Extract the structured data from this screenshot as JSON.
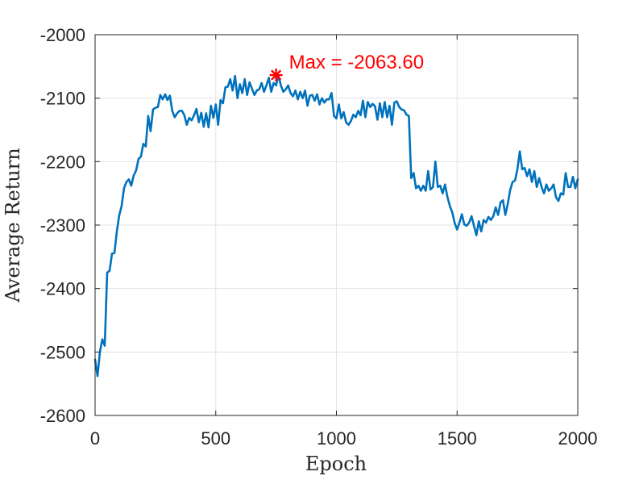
{
  "chart_data": {
    "type": "line",
    "title": "",
    "xlabel": "Epoch",
    "ylabel": "Average Return",
    "xlim": [
      0,
      2000
    ],
    "ylim": [
      -2600,
      -2000
    ],
    "xticks": [
      0,
      500,
      1000,
      1500,
      2000
    ],
    "yticks": [
      -2600,
      -2500,
      -2400,
      -2300,
      -2200,
      -2100,
      -2000
    ],
    "xtick_labels": [
      "0",
      "500",
      "1000",
      "1500",
      "2000"
    ],
    "ytick_labels": [
      "-2600",
      "-2500",
      "-2400",
      "-2300",
      "-2200",
      "-2100",
      "-2000"
    ],
    "grid": true,
    "line_color": "#0072BD",
    "series": [
      {
        "x": [
          0,
          10,
          20,
          30,
          40,
          50,
          60,
          70,
          80,
          90,
          100,
          110,
          120,
          130,
          140,
          150,
          160,
          170,
          180,
          190,
          200,
          210,
          220,
          230,
          240,
          250,
          260,
          270,
          280,
          290,
          300,
          310,
          320,
          330,
          340,
          350,
          360,
          370,
          380,
          390,
          400,
          410,
          420,
          430,
          440,
          450,
          460,
          470,
          480,
          490,
          500,
          510,
          520,
          530,
          540,
          550,
          560,
          570,
          580,
          590,
          600,
          610,
          620,
          630,
          640,
          650,
          660,
          670,
          680,
          690,
          700,
          710,
          720,
          730,
          740,
          750,
          760,
          770,
          780,
          790,
          800,
          810,
          820,
          830,
          840,
          850,
          860,
          870,
          880,
          890,
          900,
          910,
          920,
          930,
          940,
          950,
          960,
          970,
          980,
          990,
          1000,
          1010,
          1020,
          1030,
          1040,
          1050,
          1060,
          1070,
          1080,
          1090,
          1100,
          1110,
          1120,
          1130,
          1140,
          1150,
          1160,
          1170,
          1180,
          1190,
          1200,
          1210,
          1220,
          1230,
          1240,
          1250,
          1260,
          1270,
          1280,
          1290,
          1300,
          1310,
          1320,
          1330,
          1340,
          1350,
          1360,
          1370,
          1380,
          1390,
          1400,
          1410,
          1420,
          1430,
          1440,
          1450,
          1460,
          1470,
          1480,
          1490,
          1500,
          1510,
          1520,
          1530,
          1540,
          1550,
          1560,
          1570,
          1580,
          1590,
          1600,
          1610,
          1620,
          1630,
          1640,
          1650,
          1660,
          1670,
          1680,
          1690,
          1700,
          1710,
          1720,
          1730,
          1740,
          1750,
          1760,
          1770,
          1780,
          1790,
          1800,
          1810,
          1820,
          1830,
          1840,
          1850,
          1860,
          1870,
          1880,
          1890,
          1900,
          1910,
          1920,
          1930,
          1940,
          1950,
          1960,
          1970,
          1980,
          1990,
          2000
        ],
        "y": [
          -2512,
          -2538,
          -2500,
          -2480,
          -2490,
          -2375,
          -2372,
          -2345,
          -2344,
          -2310,
          -2285,
          -2270,
          -2242,
          -2232,
          -2228,
          -2238,
          -2222,
          -2214,
          -2196,
          -2192,
          -2172,
          -2176,
          -2128,
          -2152,
          -2118,
          -2115,
          -2114,
          -2095,
          -2102,
          -2094,
          -2103,
          -2096,
          -2120,
          -2130,
          -2124,
          -2120,
          -2120,
          -2127,
          -2142,
          -2131,
          -2135,
          -2127,
          -2117,
          -2138,
          -2123,
          -2145,
          -2124,
          -2146,
          -2112,
          -2131,
          -2110,
          -2142,
          -2103,
          -2108,
          -2083,
          -2082,
          -2070,
          -2088,
          -2065,
          -2100,
          -2078,
          -2092,
          -2070,
          -2095,
          -2075,
          -2085,
          -2095,
          -2088,
          -2086,
          -2076,
          -2090,
          -2080,
          -2068,
          -2090,
          -2076,
          -2080,
          -2064,
          -2080,
          -2090,
          -2086,
          -2080,
          -2092,
          -2097,
          -2088,
          -2102,
          -2090,
          -2100,
          -2088,
          -2112,
          -2096,
          -2095,
          -2104,
          -2094,
          -2110,
          -2100,
          -2107,
          -2102,
          -2102,
          -2092,
          -2128,
          -2132,
          -2110,
          -2132,
          -2122,
          -2138,
          -2142,
          -2136,
          -2126,
          -2130,
          -2120,
          -2127,
          -2104,
          -2130,
          -2106,
          -2114,
          -2109,
          -2113,
          -2134,
          -2108,
          -2130,
          -2106,
          -2130,
          -2112,
          -2142,
          -2107,
          -2105,
          -2114,
          -2118,
          -2119,
          -2126,
          -2128,
          -2226,
          -2218,
          -2242,
          -2238,
          -2246,
          -2238,
          -2246,
          -2215,
          -2244,
          -2240,
          -2200,
          -2240,
          -2238,
          -2250,
          -2236,
          -2256,
          -2270,
          -2280,
          -2297,
          -2307,
          -2296,
          -2283,
          -2299,
          -2301,
          -2296,
          -2286,
          -2301,
          -2316,
          -2294,
          -2310,
          -2292,
          -2296,
          -2287,
          -2292,
          -2286,
          -2272,
          -2284,
          -2264,
          -2261,
          -2284,
          -2267,
          -2245,
          -2232,
          -2230,
          -2212,
          -2184,
          -2212,
          -2210,
          -2223,
          -2212,
          -2232,
          -2215,
          -2240,
          -2226,
          -2240,
          -2250,
          -2236,
          -2246,
          -2242,
          -2236,
          -2256,
          -2262,
          -2250,
          -2252,
          -2218,
          -2240,
          -2240,
          -2224,
          -2242,
          -2228
        ]
      }
    ],
    "annotations": [
      {
        "x": 750,
        "y": -2063.6,
        "marker": "asterisk",
        "color": "#ff0000",
        "text": "Max = -2063.60"
      }
    ]
  }
}
